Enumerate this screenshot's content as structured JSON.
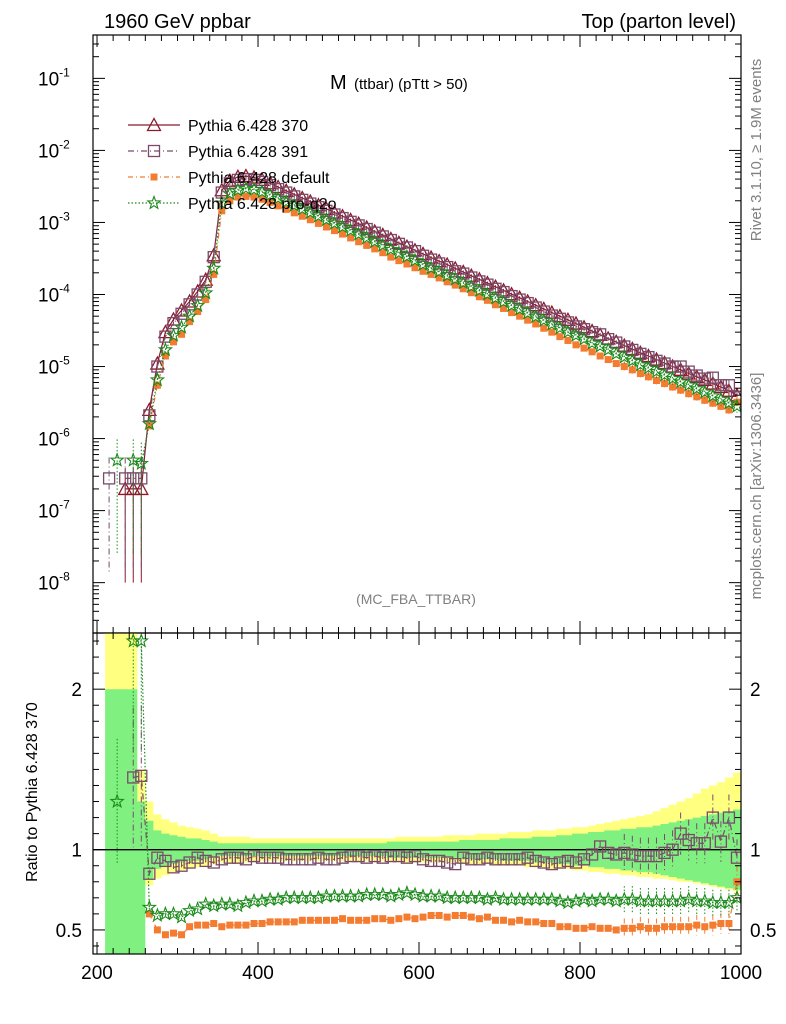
{
  "header": {
    "left": "1960 GeV ppbar",
    "right": "Top (parton level)"
  },
  "side_labels": {
    "rivet": "Rivet 3.1.10, ≥ 1.9M events",
    "mcplots": "mcplots.cern.ch [arXiv:1306.3436]"
  },
  "colors": {
    "py370": "#8b1a2b",
    "py391": "#7a4a6a",
    "pydefault": "#f47c30",
    "pyprod2o": "#1a8a1a",
    "band_yellow": "#ffff80",
    "band_green": "#80f080"
  },
  "chart_data": [
    {
      "type": "line",
      "title": "M",
      "title_sub": "(ttbar) (pTtt > 50)",
      "analysis": "(MC_FBA_TTBAR)",
      "yscale": "log",
      "ylim": [
        2e-09,
        0.4
      ],
      "xlim": [
        195,
        1000
      ],
      "y_tick_labels": [
        "10^-1",
        "10^-2",
        "10^-3",
        "10^-4",
        "10^-5",
        "10^-6",
        "10^-7",
        "10^-8"
      ],
      "x_tick_labels": [
        "200",
        "400",
        "600",
        "800",
        "1000"
      ],
      "x_bins": [
        215,
        225,
        235,
        245,
        255,
        265,
        275,
        285,
        295,
        305,
        315,
        325,
        335,
        345,
        355,
        365,
        375,
        385,
        395,
        405,
        415,
        425,
        435,
        445,
        455,
        465,
        475,
        485,
        495,
        505,
        515,
        525,
        535,
        545,
        555,
        565,
        575,
        585,
        595,
        605,
        615,
        625,
        635,
        645,
        655,
        665,
        675,
        685,
        695,
        705,
        715,
        725,
        735,
        745,
        755,
        765,
        775,
        785,
        795,
        805,
        815,
        825,
        835,
        845,
        855,
        865,
        875,
        885,
        895,
        905,
        915,
        925,
        935,
        945,
        955,
        965,
        975,
        985,
        995
      ],
      "legend": [
        "Pythia 6.428 370",
        "Pythia 6.428 391",
        "Pythia 6.428 default",
        "Pythia 6.428 pro-q2o"
      ],
      "series": [
        {
          "name": "Pythia 6.428 370",
          "marker": "triangle",
          "values": [
            null,
            null,
            2e-07,
            2e-07,
            2e-07,
            2.5e-06,
            1.1e-05,
            3e-05,
            4.5e-05,
            6e-05,
            8e-05,
            0.00011,
            0.00016,
            0.00035,
            0.0028,
            0.0038,
            0.0043,
            0.0044,
            0.0042,
            0.0039,
            0.0035,
            0.0031,
            0.00275,
            0.00245,
            0.00218,
            0.00195,
            0.00173,
            0.00154,
            0.00137,
            0.00122,
            0.00108,
            0.00096,
            0.00085,
            0.00075,
            0.00067,
            0.00059,
            0.00052,
            0.00046,
            0.00041,
            0.000365,
            0.000325,
            0.00029,
            0.00026,
            0.00023,
            0.000205,
            0.000182,
            0.000162,
            0.000144,
            0.000128,
            0.000114,
            0.000101,
            9e-05,
            8e-05,
            7.1e-05,
            6.3e-05,
            5.6e-05,
            5e-05,
            4.45e-05,
            3.95e-05,
            3.5e-05,
            3.1e-05,
            2.75e-05,
            2.45e-05,
            2.2e-05,
            1.95e-05,
            1.75e-05,
            1.55e-05,
            1.4e-05,
            1.25e-05,
            1.12e-05,
            1e-05,
            9e-06,
            8e-06,
            7.2e-06,
            6.5e-06,
            5.8e-06,
            5.2e-06,
            4.6e-06,
            4e-06
          ]
        },
        {
          "name": "Pythia 6.428 391",
          "marker": "open-square",
          "values": [
            2.8e-07,
            null,
            2.8e-07,
            2.8e-07,
            2.8e-07,
            2.1e-06,
            1e-05,
            2.6e-05,
            4e-05,
            5.4e-05,
            7.3e-05,
            0.0001,
            0.00015,
            0.00033,
            0.0026,
            0.0035,
            0.0039,
            0.004,
            0.0039,
            0.00365,
            0.0033,
            0.0029,
            0.0026,
            0.0023,
            0.00206,
            0.00183,
            0.00163,
            0.00145,
            0.00129,
            0.00115,
            0.00102,
            0.00091,
            0.00081,
            0.00072,
            0.00064,
            0.00057,
            0.000505,
            0.00045,
            0.0004,
            0.000345,
            0.000305,
            0.00027,
            0.00024,
            0.00021,
            0.000195,
            0.000172,
            0.000152,
            0.000137,
            0.00012,
            0.000108,
            9.5e-05,
            8.5e-05,
            7.6e-05,
            6.6e-05,
            5.8e-05,
            5.1e-05,
            4.6e-05,
            4.1e-05,
            3.6e-05,
            3.3e-05,
            3e-05,
            2.8e-05,
            2.4e-05,
            2.15e-05,
            1.9e-05,
            1.7e-05,
            1.5e-05,
            1.35e-05,
            1.2e-05,
            1.1e-05,
            1e-05,
            1e-05,
            8.5e-06,
            7.5e-06,
            6.8e-06,
            7e-06,
            5.5e-06,
            5.5e-06,
            3.8e-06
          ]
        },
        {
          "name": "Pythia 6.428 default",
          "marker": "filled-square",
          "values": [
            null,
            null,
            null,
            null,
            null,
            1.5e-06,
            5.5e-06,
            1.4e-05,
            2.2e-05,
            2.8e-05,
            4.2e-05,
            5.8e-05,
            8.5e-05,
            0.00019,
            0.00145,
            0.002,
            0.00225,
            0.0023,
            0.00225,
            0.0021,
            0.0019,
            0.0017,
            0.00152,
            0.00136,
            0.00122,
            0.00109,
            0.00097,
            0.000865,
            0.00077,
            0.00069,
            0.00061,
            0.00054,
            0.00048,
            0.00043,
            0.00038,
            0.00033,
            0.000295,
            0.000265,
            0.000235,
            0.00021,
            0.00019,
            0.00017,
            0.00015,
            0.000135,
            0.00012,
            0.000106,
            9.3e-05,
            8.3e-05,
            7.2e-05,
            6.4e-05,
            5.6e-05,
            5e-05,
            4.4e-05,
            3.9e-05,
            3.4e-05,
            3e-05,
            2.6e-05,
            2.3e-05,
            2e-05,
            1.8e-05,
            1.6e-05,
            1.4e-05,
            1.25e-05,
            1.1e-05,
            1e-05,
            9e-06,
            8e-06,
            7.2e-06,
            6.4e-06,
            5.8e-06,
            5.2e-06,
            4.7e-06,
            4.2e-06,
            3.8e-06,
            3.4e-06,
            3.1e-06,
            2.8e-06,
            2.5e-06,
            3.2e-06
          ]
        },
        {
          "name": "Pythia 6.428 pro-q2o",
          "marker": "star",
          "values": [
            null,
            5e-07,
            null,
            5e-07,
            4.5e-07,
            1.6e-06,
            6.5e-06,
            1.7e-05,
            2.7e-05,
            3.5e-05,
            5e-05,
            7e-05,
            0.000105,
            0.00023,
            0.00185,
            0.0025,
            0.0028,
            0.00295,
            0.00285,
            0.00265,
            0.0024,
            0.00215,
            0.00192,
            0.00172,
            0.00153,
            0.00137,
            0.00122,
            0.00109,
            0.00097,
            0.000865,
            0.00077,
            0.000685,
            0.00061,
            0.00054,
            0.00048,
            0.00042,
            0.000375,
            0.000335,
            0.000295,
            0.00026,
            0.00023,
            0.000205,
            0.000182,
            0.000162,
            0.000144,
            0.000128,
            0.000113,
            0.0001,
            8.9e-05,
            7.9e-05,
            7e-05,
            6.2e-05,
            5.5e-05,
            4.9e-05,
            4.35e-05,
            3.85e-05,
            3.4e-05,
            3e-05,
            2.7e-05,
            2.4e-05,
            2.1e-05,
            1.9e-05,
            1.7e-05,
            1.5e-05,
            1.35e-05,
            1.2e-05,
            1.05e-05,
            9.5e-06,
            8.5e-06,
            7.6e-06,
            6.8e-06,
            6.1e-06,
            5.5e-06,
            4.9e-06,
            4.4e-06,
            3.9e-06,
            3.5e-06,
            3.1e-06,
            2.8e-06
          ]
        }
      ]
    },
    {
      "type": "line",
      "title": "",
      "ylabel": "Ratio to Pythia 6.428 370",
      "ylim": [
        0.35,
        2.35
      ],
      "xlim": [
        195,
        1000
      ],
      "y_tick_labels": [
        "0.5",
        "1",
        "2"
      ],
      "reference_line": 1,
      "band_yellow_lower": [
        0.6,
        0.6,
        0.6,
        0.6,
        0.75,
        0.78,
        0.82,
        0.84,
        0.86,
        0.87,
        0.88,
        0.89,
        0.9,
        0.91,
        0.92,
        0.92,
        0.92,
        0.92,
        0.93,
        0.93,
        0.93,
        0.93,
        0.93,
        0.93,
        0.93,
        0.93,
        0.93,
        0.93,
        0.93,
        0.93,
        0.93,
        0.93,
        0.93,
        0.93,
        0.93,
        0.93,
        0.93,
        0.92,
        0.92,
        0.92,
        0.92,
        0.92,
        0.92,
        0.92,
        0.91,
        0.91,
        0.91,
        0.91,
        0.9,
        0.9,
        0.9,
        0.9,
        0.89,
        0.89,
        0.89,
        0.88,
        0.88,
        0.88,
        0.87,
        0.87,
        0.86,
        0.86,
        0.85,
        0.85,
        0.84,
        0.84,
        0.83,
        0.83,
        0.82,
        0.82,
        0.81,
        0.8,
        0.8,
        0.79,
        0.78,
        0.77,
        0.76,
        0.75,
        0.74
      ],
      "band_yellow_upper": [
        2.4,
        2.4,
        2.4,
        2.4,
        1.5,
        1.3,
        1.22,
        1.19,
        1.17,
        1.15,
        1.14,
        1.13,
        1.12,
        1.1,
        1.08,
        1.08,
        1.08,
        1.08,
        1.07,
        1.07,
        1.07,
        1.07,
        1.07,
        1.07,
        1.07,
        1.07,
        1.07,
        1.07,
        1.07,
        1.07,
        1.07,
        1.07,
        1.07,
        1.07,
        1.07,
        1.07,
        1.08,
        1.08,
        1.08,
        1.08,
        1.08,
        1.08,
        1.09,
        1.09,
        1.09,
        1.09,
        1.1,
        1.1,
        1.1,
        1.1,
        1.11,
        1.11,
        1.11,
        1.12,
        1.12,
        1.12,
        1.13,
        1.13,
        1.14,
        1.14,
        1.15,
        1.16,
        1.17,
        1.18,
        1.19,
        1.2,
        1.21,
        1.22,
        1.24,
        1.26,
        1.28,
        1.3,
        1.32,
        1.35,
        1.38,
        1.4,
        1.42,
        1.45,
        1.48
      ],
      "band_green_lower": [
        0.35,
        0.35,
        0.35,
        0.35,
        0.35,
        0.82,
        0.88,
        0.9,
        0.91,
        0.92,
        0.93,
        0.93,
        0.94,
        0.95,
        0.96,
        0.96,
        0.96,
        0.96,
        0.96,
        0.96,
        0.96,
        0.96,
        0.96,
        0.96,
        0.96,
        0.96,
        0.96,
        0.96,
        0.96,
        0.96,
        0.96,
        0.96,
        0.96,
        0.96,
        0.96,
        0.95,
        0.95,
        0.95,
        0.95,
        0.95,
        0.95,
        0.95,
        0.95,
        0.95,
        0.94,
        0.94,
        0.94,
        0.94,
        0.94,
        0.93,
        0.93,
        0.93,
        0.93,
        0.92,
        0.92,
        0.92,
        0.91,
        0.91,
        0.9,
        0.9,
        0.89,
        0.89,
        0.88,
        0.88,
        0.87,
        0.87,
        0.86,
        0.86,
        0.85,
        0.84,
        0.83,
        0.82,
        0.81,
        0.8,
        0.79,
        0.78,
        0.77,
        0.76,
        0.75
      ],
      "band_green_upper": [
        2.0,
        2.0,
        2.0,
        2.0,
        1.3,
        1.18,
        1.12,
        1.1,
        1.09,
        1.08,
        1.07,
        1.07,
        1.06,
        1.05,
        1.04,
        1.04,
        1.04,
        1.04,
        1.04,
        1.04,
        1.04,
        1.04,
        1.04,
        1.04,
        1.04,
        1.04,
        1.04,
        1.04,
        1.04,
        1.04,
        1.04,
        1.04,
        1.04,
        1.04,
        1.04,
        1.05,
        1.05,
        1.05,
        1.05,
        1.05,
        1.05,
        1.05,
        1.05,
        1.05,
        1.06,
        1.06,
        1.06,
        1.06,
        1.06,
        1.07,
        1.07,
        1.07,
        1.07,
        1.08,
        1.08,
        1.08,
        1.09,
        1.09,
        1.1,
        1.1,
        1.11,
        1.11,
        1.12,
        1.12,
        1.13,
        1.13,
        1.14,
        1.14,
        1.15,
        1.16,
        1.17,
        1.18,
        1.19,
        1.2,
        1.21,
        1.22,
        1.23,
        1.24,
        1.25
      ],
      "series": [
        {
          "name": "Pythia 6.428 391",
          "marker": "open-square",
          "values": [
            null,
            null,
            null,
            1.45,
            1.46,
            0.85,
            0.95,
            0.93,
            0.89,
            0.9,
            0.92,
            0.95,
            0.93,
            0.92,
            0.94,
            0.95,
            0.95,
            0.94,
            0.96,
            0.95,
            0.95,
            0.95,
            0.94,
            0.94,
            0.94,
            0.94,
            0.95,
            0.94,
            0.94,
            0.95,
            0.96,
            0.96,
            0.95,
            0.96,
            0.95,
            0.96,
            0.96,
            0.95,
            0.96,
            0.94,
            0.93,
            0.93,
            0.92,
            0.91,
            0.95,
            0.94,
            0.94,
            0.95,
            0.94,
            0.94,
            0.94,
            0.94,
            0.95,
            0.93,
            0.92,
            0.91,
            0.92,
            0.93,
            0.92,
            0.94,
            0.97,
            1.02,
            0.98,
            0.97,
            0.98,
            0.97,
            0.96,
            0.96,
            0.96,
            0.98,
            1.0,
            1.1,
            1.06,
            1.04,
            1.04,
            1.2,
            1.05,
            1.2,
            0.95
          ]
        },
        {
          "name": "Pythia 6.428 default",
          "marker": "filled-square",
          "values": [
            null,
            null,
            null,
            null,
            null,
            0.6,
            0.5,
            0.47,
            0.48,
            0.47,
            0.52,
            0.53,
            0.53,
            0.54,
            0.52,
            0.53,
            0.53,
            0.53,
            0.54,
            0.54,
            0.55,
            0.55,
            0.55,
            0.55,
            0.56,
            0.56,
            0.56,
            0.56,
            0.56,
            0.57,
            0.56,
            0.56,
            0.56,
            0.57,
            0.57,
            0.56,
            0.57,
            0.58,
            0.57,
            0.58,
            0.59,
            0.59,
            0.58,
            0.59,
            0.59,
            0.58,
            0.57,
            0.58,
            0.56,
            0.56,
            0.55,
            0.56,
            0.55,
            0.55,
            0.54,
            0.54,
            0.52,
            0.52,
            0.51,
            0.51,
            0.52,
            0.51,
            0.51,
            0.5,
            0.51,
            0.51,
            0.52,
            0.51,
            0.51,
            0.52,
            0.52,
            0.52,
            0.52,
            0.53,
            0.52,
            0.53,
            0.54,
            0.54,
            0.8
          ]
        },
        {
          "name": "Pythia 6.428 pro-q2o",
          "marker": "star",
          "values": [
            null,
            1.3,
            null,
            2.3,
            2.3,
            0.64,
            0.59,
            0.6,
            0.6,
            0.58,
            0.62,
            0.63,
            0.66,
            0.65,
            0.66,
            0.66,
            0.65,
            0.67,
            0.68,
            0.68,
            0.69,
            0.69,
            0.7,
            0.7,
            0.7,
            0.7,
            0.7,
            0.71,
            0.71,
            0.71,
            0.71,
            0.71,
            0.72,
            0.72,
            0.72,
            0.71,
            0.72,
            0.73,
            0.72,
            0.71,
            0.71,
            0.71,
            0.7,
            0.7,
            0.7,
            0.7,
            0.7,
            0.69,
            0.7,
            0.69,
            0.69,
            0.69,
            0.69,
            0.69,
            0.69,
            0.69,
            0.68,
            0.67,
            0.68,
            0.69,
            0.68,
            0.69,
            0.69,
            0.68,
            0.69,
            0.69,
            0.68,
            0.68,
            0.68,
            0.68,
            0.68,
            0.68,
            0.69,
            0.68,
            0.68,
            0.67,
            0.67,
            0.67,
            0.7
          ]
        }
      ]
    }
  ]
}
